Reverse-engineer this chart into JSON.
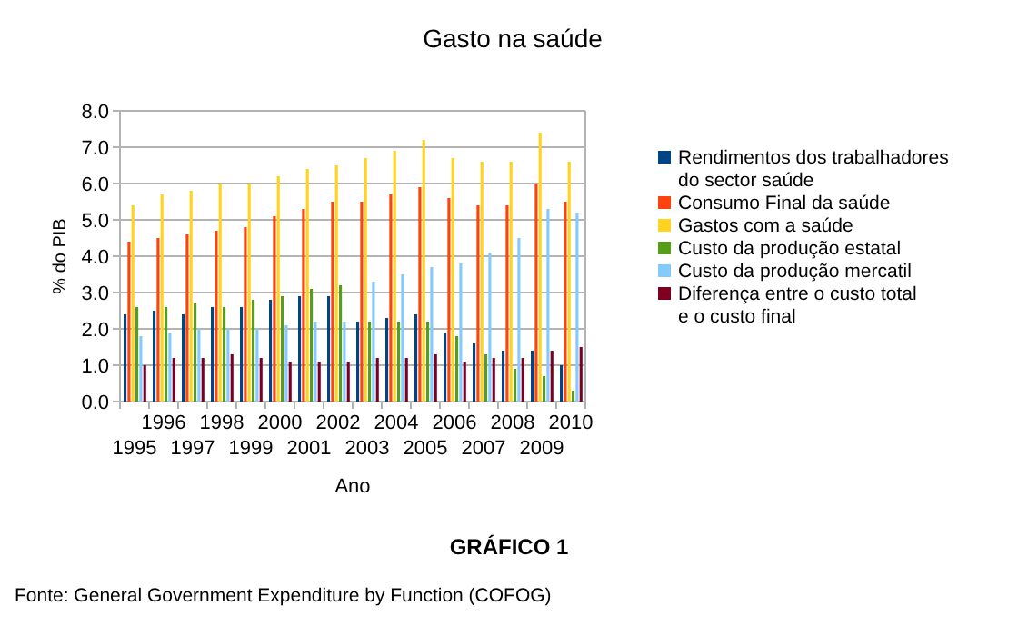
{
  "chart_data": {
    "type": "bar",
    "title": "Gasto na saúde",
    "xlabel": "Ano",
    "ylabel": "% do PIB",
    "categories": [
      "1995",
      "1996",
      "1997",
      "1998",
      "1999",
      "2000",
      "2001",
      "2002",
      "2003",
      "2004",
      "2005",
      "2006",
      "2007",
      "2008",
      "2009",
      "2010"
    ],
    "series": [
      {
        "name": "Rendimentos dos trabalhadores do sector saúde",
        "color": "#004586",
        "values": [
          2.4,
          2.5,
          2.4,
          2.6,
          2.6,
          2.8,
          2.9,
          2.9,
          2.2,
          2.3,
          2.4,
          1.9,
          1.6,
          1.4,
          1.4,
          1.0
        ]
      },
      {
        "name": "Consumo Final da saúde",
        "color": "#ff420e",
        "values": [
          4.4,
          4.5,
          4.6,
          4.7,
          4.8,
          5.1,
          5.3,
          5.5,
          5.5,
          5.7,
          5.9,
          5.6,
          5.4,
          5.4,
          6.0,
          5.5
        ]
      },
      {
        "name": "Gastos com a saúde",
        "color": "#ffd320",
        "values": [
          5.4,
          5.7,
          5.8,
          6.0,
          6.0,
          6.2,
          6.4,
          6.5,
          6.7,
          6.9,
          7.2,
          6.7,
          6.6,
          6.6,
          7.4,
          6.6
        ]
      },
      {
        "name": "Custo da produção estatal",
        "color": "#579d1c",
        "values": [
          2.6,
          2.6,
          2.7,
          2.6,
          2.8,
          2.9,
          3.1,
          3.2,
          2.2,
          2.2,
          2.2,
          1.8,
          1.3,
          0.9,
          0.7,
          0.3
        ]
      },
      {
        "name": "Custo da produção mercatil",
        "color": "#83caff",
        "values": [
          1.8,
          1.9,
          2.0,
          2.0,
          2.0,
          2.1,
          2.2,
          2.2,
          3.3,
          3.5,
          3.7,
          3.8,
          4.1,
          4.5,
          5.3,
          5.2
        ]
      },
      {
        "name": "Diferença entre o custo total e o custo final",
        "color": "#7e0021",
        "values": [
          1.0,
          1.2,
          1.2,
          1.3,
          1.2,
          1.1,
          1.1,
          1.1,
          1.2,
          1.2,
          1.3,
          1.1,
          1.2,
          1.2,
          1.4,
          1.5
        ]
      }
    ],
    "ylim": [
      0,
      8
    ],
    "yticks": [
      {
        "value": 0,
        "label": "0.0"
      },
      {
        "value": 1,
        "label": "1.0"
      },
      {
        "value": 2,
        "label": "2.0"
      },
      {
        "value": 3,
        "label": "3.0"
      },
      {
        "value": 4,
        "label": "4.0"
      },
      {
        "value": 5,
        "label": "5.0"
      },
      {
        "value": 6,
        "label": "6.0"
      },
      {
        "value": 7,
        "label": "7.0"
      },
      {
        "value": 8,
        "label": "8.0"
      }
    ],
    "grid": "y",
    "legend": "right",
    "annotations": [
      "GRÁFICO 1",
      "Fonte: General Government Expenditure by Function (COFOG)"
    ]
  }
}
